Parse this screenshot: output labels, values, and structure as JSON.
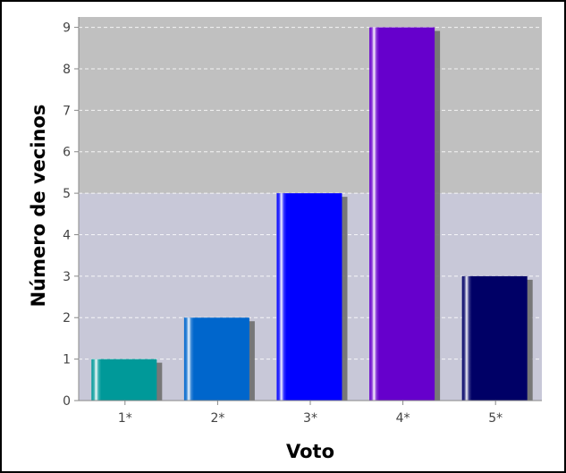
{
  "chart_data": {
    "type": "bar",
    "title": "",
    "xlabel": "Voto",
    "ylabel": "Número de vecinos",
    "categories": [
      "1*",
      "2*",
      "3*",
      "4*",
      "5*"
    ],
    "values": [
      1,
      2,
      5,
      9,
      3
    ],
    "ylim": [
      0,
      9.25
    ],
    "yticks": [
      "0",
      "1",
      "2",
      "3",
      "4",
      "5",
      "6",
      "7",
      "8",
      "9"
    ],
    "grid": true,
    "legend": "none",
    "bar_colors": [
      "#009999",
      "#0066cc",
      "#0000ff",
      "#6600cc",
      "#000066"
    ],
    "background_bands": [
      {
        "from": 0,
        "to": 5,
        "color": "#c8c8d8"
      },
      {
        "from": 5,
        "to": 9.25,
        "color": "#c0c0c0"
      }
    ]
  }
}
